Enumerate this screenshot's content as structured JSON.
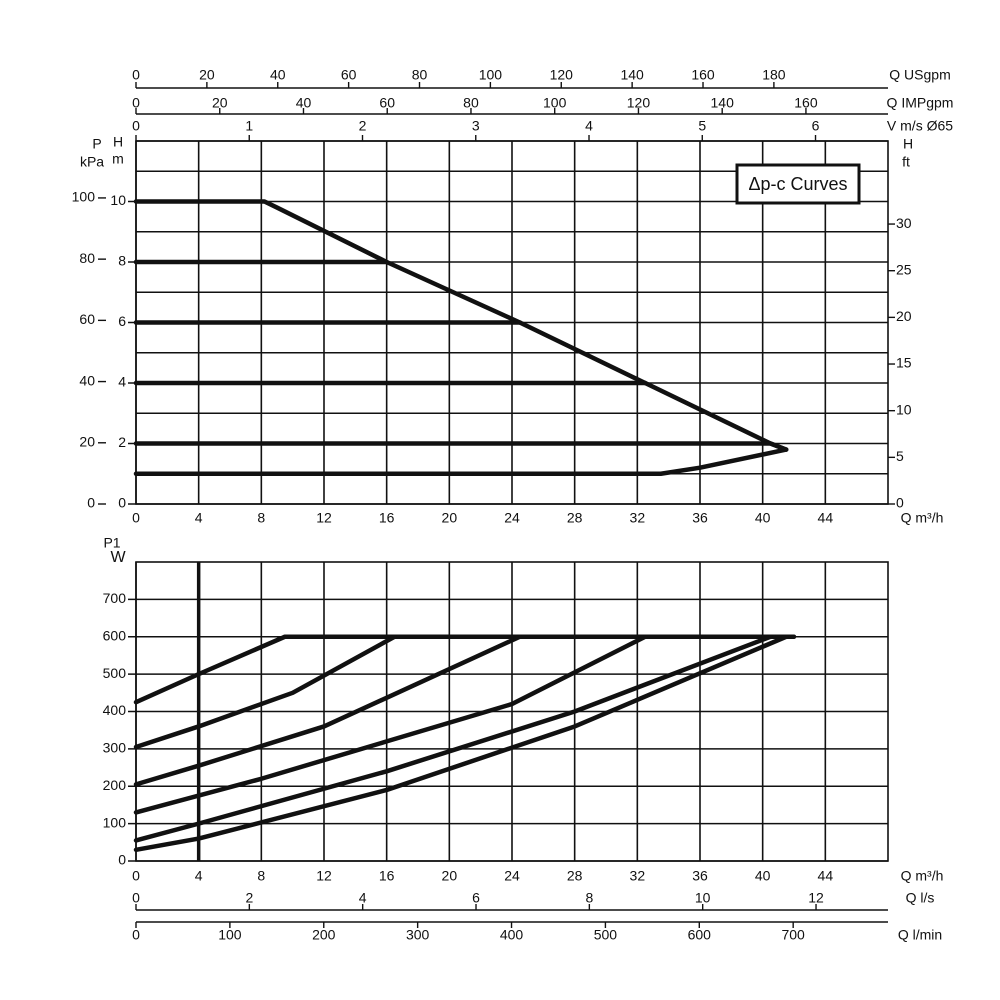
{
  "chart_data": [
    {
      "type": "line",
      "annotation": "Δp-c Curves",
      "x_label": "Q m³/h",
      "xlim": [
        0,
        48
      ],
      "xticks": [
        0,
        4,
        8,
        12,
        16,
        20,
        24,
        28,
        32,
        36,
        40,
        44
      ],
      "y_label": "H",
      "y_unit": "m",
      "ylim": [
        0,
        12
      ],
      "yticks": [
        0,
        2,
        4,
        6,
        8,
        10
      ],
      "y_minor": [
        1,
        3,
        5,
        7,
        9,
        11
      ],
      "grid": true,
      "axes": [
        {
          "side": "left",
          "label": "P",
          "unit": "kPa",
          "lim": [
            0,
            118.6
          ],
          "ticks": [
            0,
            20,
            40,
            60,
            80,
            100
          ]
        },
        {
          "side": "right",
          "label": "H",
          "unit": "ft",
          "lim": [
            0,
            38.9
          ],
          "ticks": [
            0,
            5,
            10,
            15,
            20,
            25,
            30
          ]
        },
        {
          "side": "top",
          "label": "Q USgpm",
          "lim": [
            0,
            212.2
          ],
          "ticks": [
            0,
            20,
            40,
            60,
            80,
            100,
            120,
            140,
            160,
            180
          ]
        },
        {
          "side": "top",
          "label": "Q IMPgpm",
          "lim": [
            0,
            179.6
          ],
          "ticks": [
            0,
            20,
            40,
            60,
            80,
            100,
            120,
            140,
            160
          ]
        },
        {
          "side": "top",
          "label": "V m/s Ø65",
          "lim": [
            0,
            6.64
          ],
          "ticks": [
            0,
            1,
            2,
            3,
            4,
            5,
            6
          ]
        }
      ],
      "series": [
        {
          "color": "#111111",
          "x": [
            0,
            8.2,
            9,
            16,
            24.5,
            32.5,
            40.5,
            41.5
          ],
          "values": [
            10,
            10,
            9.8,
            8,
            6,
            4,
            2,
            1.8
          ]
        },
        {
          "color": "#111111",
          "x": [
            0,
            16
          ],
          "values": [
            8,
            8
          ]
        },
        {
          "color": "#111111",
          "x": [
            0,
            24.5
          ],
          "values": [
            6,
            6
          ]
        },
        {
          "color": "#111111",
          "x": [
            0,
            32.5
          ],
          "values": [
            4,
            4
          ]
        },
        {
          "color": "#111111",
          "x": [
            0,
            40.5,
            41.5
          ],
          "values": [
            2,
            2,
            1.8
          ]
        },
        {
          "color": "#111111",
          "x": [
            0,
            33.5,
            36,
            41.5
          ],
          "values": [
            1,
            1,
            1.2,
            1.8
          ]
        }
      ]
    },
    {
      "type": "line",
      "x_label": "Q m³/h",
      "xlim": [
        0,
        48
      ],
      "xticks": [
        0,
        4,
        8,
        12,
        16,
        20,
        24,
        28,
        32,
        36,
        40,
        44
      ],
      "y_label": "P1",
      "y_unit": "W",
      "ylim": [
        0,
        800
      ],
      "yticks": [
        0,
        100,
        200,
        300,
        400,
        500,
        600,
        700
      ],
      "grid": true,
      "x_marker": 4,
      "axes": [
        {
          "side": "bottom",
          "label": "Q l/s",
          "lim": [
            0,
            13.27
          ],
          "ticks": [
            0,
            2,
            4,
            6,
            8,
            10,
            12
          ]
        },
        {
          "side": "bottom",
          "label": "Q l/min",
          "lim": [
            0,
            801
          ],
          "ticks": [
            0,
            100,
            200,
            300,
            400,
            500,
            600,
            700
          ]
        }
      ],
      "series": [
        {
          "color": "#111111",
          "x": [
            0,
            4,
            9.5,
            42
          ],
          "values": [
            425,
            500,
            600,
            600
          ]
        },
        {
          "color": "#111111",
          "x": [
            0,
            4,
            10,
            16.5
          ],
          "values": [
            305,
            360,
            450,
            600
          ]
        },
        {
          "color": "#111111",
          "x": [
            0,
            4,
            12,
            24.5
          ],
          "values": [
            205,
            255,
            360,
            600
          ]
        },
        {
          "color": "#111111",
          "x": [
            0,
            8,
            16,
            24,
            32.5
          ],
          "values": [
            130,
            220,
            320,
            420,
            600
          ]
        },
        {
          "color": "#111111",
          "x": [
            0,
            4,
            16,
            28,
            40.5
          ],
          "values": [
            55,
            100,
            240,
            400,
            600
          ]
        },
        {
          "color": "#111111",
          "x": [
            0,
            4,
            16,
            28,
            41.5
          ],
          "values": [
            30,
            60,
            190,
            360,
            600
          ]
        }
      ]
    }
  ]
}
